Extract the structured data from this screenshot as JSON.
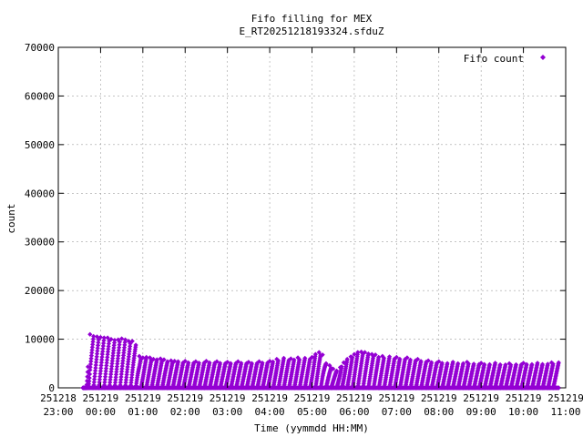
{
  "chart_data": {
    "type": "scatter",
    "title": "Fifo filling for MEX",
    "subtitle": "E_RT20251218193324.sfduZ",
    "xlabel": "Time (yymmdd HH:MM)",
    "ylabel": "count",
    "xlim": [
      "2025-12-18 23:00",
      "2025-12-19 11:00"
    ],
    "ylim": [
      0,
      70000
    ],
    "y_ticks": [
      0,
      10000,
      20000,
      30000,
      40000,
      50000,
      60000,
      70000
    ],
    "x_ticks": [
      {
        "date": "251218",
        "time": "23:00"
      },
      {
        "date": "251219",
        "time": "00:00"
      },
      {
        "date": "251219",
        "time": "01:00"
      },
      {
        "date": "251219",
        "time": "02:00"
      },
      {
        "date": "251219",
        "time": "03:00"
      },
      {
        "date": "251219",
        "time": "04:00"
      },
      {
        "date": "251219",
        "time": "05:00"
      },
      {
        "date": "251219",
        "time": "06:00"
      },
      {
        "date": "251219",
        "time": "07:00"
      },
      {
        "date": "251219",
        "time": "08:00"
      },
      {
        "date": "251219",
        "time": "09:00"
      },
      {
        "date": "251219",
        "time": "10:00"
      },
      {
        "date": "251219",
        "time": "11:00"
      }
    ],
    "grid": true,
    "legend_position": "top-right",
    "series": [
      {
        "name": "Fifo count",
        "color": "#9400d3",
        "marker": "diamond",
        "data_start": "2025-12-18 23:35",
        "data_end": "2025-12-19 10:50",
        "points": [
          [
            "2025-12-18 23:35",
            0
          ],
          [
            "2025-12-18 23:40",
            0
          ],
          [
            "2025-12-18 23:45",
            11000
          ],
          [
            "2025-12-18 23:50",
            10600
          ],
          [
            "2025-12-18 23:55",
            10500
          ],
          [
            "2025-12-19 00:00",
            10400
          ],
          [
            "2025-12-19 00:05",
            10300
          ],
          [
            "2025-12-19 00:10",
            10300
          ],
          [
            "2025-12-19 00:15",
            10000
          ],
          [
            "2025-12-19 00:20",
            9800
          ],
          [
            "2025-12-19 00:25",
            9900
          ],
          [
            "2025-12-19 00:30",
            10100
          ],
          [
            "2025-12-19 00:35",
            9900
          ],
          [
            "2025-12-19 00:40",
            9600
          ],
          [
            "2025-12-19 00:45",
            9600
          ],
          [
            "2025-12-19 00:50",
            8800
          ],
          [
            "2025-12-19 00:55",
            6500
          ],
          [
            "2025-12-19 01:00",
            6200
          ],
          [
            "2025-12-19 01:05",
            6300
          ],
          [
            "2025-12-19 01:10",
            6200
          ],
          [
            "2025-12-19 01:15",
            5900
          ],
          [
            "2025-12-19 01:20",
            5800
          ],
          [
            "2025-12-19 01:25",
            6000
          ],
          [
            "2025-12-19 01:30",
            5800
          ],
          [
            "2025-12-19 01:35",
            5400
          ],
          [
            "2025-12-19 01:40",
            5600
          ],
          [
            "2025-12-19 01:45",
            5500
          ],
          [
            "2025-12-19 01:50",
            5400
          ],
          [
            "2025-12-19 02:00",
            5500
          ],
          [
            "2025-12-19 02:15",
            5400
          ],
          [
            "2025-12-19 02:30",
            5500
          ],
          [
            "2025-12-19 02:45",
            5400
          ],
          [
            "2025-12-19 03:00",
            5300
          ],
          [
            "2025-12-19 03:15",
            5400
          ],
          [
            "2025-12-19 03:30",
            5300
          ],
          [
            "2025-12-19 03:45",
            5400
          ],
          [
            "2025-12-19 04:00",
            5500
          ],
          [
            "2025-12-19 04:10",
            5900
          ],
          [
            "2025-12-19 04:20",
            6100
          ],
          [
            "2025-12-19 04:30",
            6000
          ],
          [
            "2025-12-19 04:40",
            6200
          ],
          [
            "2025-12-19 04:50",
            6100
          ],
          [
            "2025-12-19 05:00",
            6300
          ],
          [
            "2025-12-19 05:05",
            6900
          ],
          [
            "2025-12-19 05:10",
            7300
          ],
          [
            "2025-12-19 05:15",
            6800
          ],
          [
            "2025-12-19 05:20",
            5000
          ],
          [
            "2025-12-19 05:25",
            4600
          ],
          [
            "2025-12-19 05:30",
            3900
          ],
          [
            "2025-12-19 05:35",
            3500
          ],
          [
            "2025-12-19 05:40",
            4200
          ],
          [
            "2025-12-19 05:45",
            5200
          ],
          [
            "2025-12-19 05:50",
            5900
          ],
          [
            "2025-12-19 05:55",
            6400
          ],
          [
            "2025-12-19 06:00",
            6900
          ],
          [
            "2025-12-19 06:05",
            7300
          ],
          [
            "2025-12-19 06:10",
            7400
          ],
          [
            "2025-12-19 06:15",
            7300
          ],
          [
            "2025-12-19 06:20",
            7000
          ],
          [
            "2025-12-19 06:25",
            6900
          ],
          [
            "2025-12-19 06:30",
            6800
          ],
          [
            "2025-12-19 06:40",
            6500
          ],
          [
            "2025-12-19 06:50",
            6400
          ],
          [
            "2025-12-19 07:00",
            6300
          ],
          [
            "2025-12-19 07:15",
            6200
          ],
          [
            "2025-12-19 07:30",
            5900
          ],
          [
            "2025-12-19 07:45",
            5600
          ],
          [
            "2025-12-19 08:00",
            5400
          ],
          [
            "2025-12-19 08:20",
            5300
          ],
          [
            "2025-12-19 08:40",
            5300
          ],
          [
            "2025-12-19 09:00",
            5100
          ],
          [
            "2025-12-19 09:20",
            5100
          ],
          [
            "2025-12-19 09:40",
            5000
          ],
          [
            "2025-12-19 10:00",
            5100
          ],
          [
            "2025-12-19 10:20",
            5100
          ],
          [
            "2025-12-19 10:40",
            5200
          ],
          [
            "2025-12-19 10:50",
            5200
          ]
        ]
      }
    ]
  }
}
